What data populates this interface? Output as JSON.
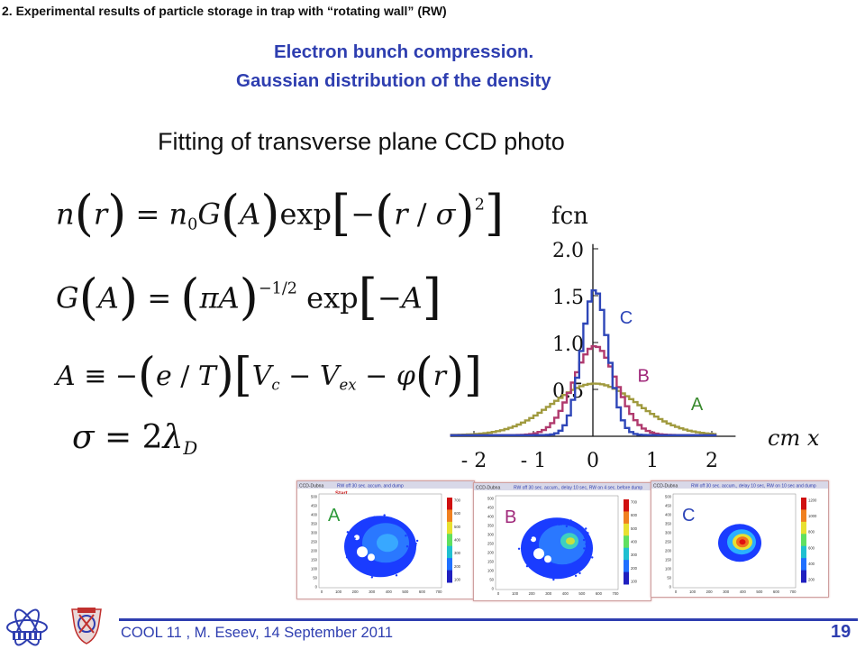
{
  "header": {
    "text": "2. Experimental results of particle storage in trap with “rotating wall” (RW)"
  },
  "title": {
    "line1": "Electron bunch compression.",
    "line2": "Gaussian distribution of the density"
  },
  "subtitle": "Fitting of transverse plane CCD photo",
  "equations": {
    "eq1": {
      "n": "n",
      "r1": "r",
      "eq": " = ",
      "n0": "n",
      "n0sub": "0",
      "G": "G",
      "A": "A",
      "exp": "exp",
      "minus": "−",
      "r2": "r",
      "slash": " / ",
      "sigma": "σ",
      "pow": "2"
    },
    "eq2": {
      "G": "G",
      "A": "A",
      "eq": " = ",
      "pi": "π",
      "A2": "A",
      "pow": "−1/2",
      "exp": " exp",
      "minus": "−",
      "A3": "A"
    },
    "eq3": {
      "A": "A",
      "eqv": " ≡ −",
      "e": "e",
      "slash": " / ",
      "T": "T",
      "V": "V",
      "csub": "c",
      "minus1": " − ",
      "V2": "V",
      "exsub": "ex",
      "minus2": " − ",
      "phi": "φ",
      "r": "r"
    },
    "eq4": {
      "sigma": "σ",
      "eq": " = 2",
      "lambda": "λ",
      "D": "D"
    }
  },
  "chart_data": {
    "type": "line",
    "title": "",
    "ylabel": "fcn",
    "xlabel": "cm x",
    "xlim": [
      -2.4,
      2.4
    ],
    "ylim": [
      0,
      2.05
    ],
    "x_ticks": [
      -2,
      -1,
      0,
      1,
      2
    ],
    "x_tick_labels": [
      "- 2",
      "- 1",
      "0",
      "1",
      "2"
    ],
    "y_ticks": [
      0.5,
      1.0,
      1.5,
      2.0
    ],
    "y_tick_labels": [
      "0.5",
      "1.0",
      "1.5",
      "2.0"
    ],
    "series": [
      {
        "name": "A",
        "color": "#a09a3e",
        "peak": 0.55,
        "sigma": 0.72
      },
      {
        "name": "B",
        "color": "#b03a6e",
        "peak": 0.95,
        "sigma": 0.36
      },
      {
        "name": "C",
        "color": "#2e46b8",
        "peak": 1.55,
        "sigma": 0.22
      }
    ],
    "series_labels": [
      {
        "name": "C",
        "x": 0.45,
        "y": 1.2,
        "color": "#2e46b8"
      },
      {
        "name": "B",
        "x": 0.75,
        "y": 0.58,
        "color": "#a0287a"
      },
      {
        "name": "A",
        "x": 1.65,
        "y": 0.28,
        "color": "#3a8a2e"
      }
    ]
  },
  "ccd_panels": [
    {
      "name": "A",
      "header": "CCD-Dubna",
      "title": "RW off 30 sec. accum. and dump",
      "start": "Start",
      "label": "A",
      "label_color": "#2e9a3a",
      "y_ticks": [
        "500",
        "450",
        "400",
        "350",
        "300",
        "250",
        "200",
        "150",
        "100",
        "50",
        "0"
      ],
      "x_ticks": [
        "0",
        "100",
        "200",
        "300",
        "400",
        "500",
        "600",
        "700"
      ],
      "scale_ticks": [
        "700",
        "600",
        "500",
        "400",
        "300",
        "200",
        "100"
      ]
    },
    {
      "name": "B",
      "header": "CCD-Dubna",
      "title": "RW off 30 sec. accum., delay 10 sec, RW on 4 sec. before dump",
      "start": "",
      "label": "B",
      "label_color": "#a0287a",
      "y_ticks": [
        "500",
        "450",
        "400",
        "350",
        "300",
        "250",
        "200",
        "150",
        "100",
        "50",
        "0"
      ],
      "x_ticks": [
        "0",
        "100",
        "200",
        "300",
        "400",
        "500",
        "600",
        "700"
      ],
      "scale_ticks": [
        "700",
        "600",
        "500",
        "400",
        "300",
        "200",
        "100"
      ]
    },
    {
      "name": "C",
      "header": "CCD-Dubna",
      "title": "RW off 30 sec. accum., delay 10 sec, RW on 10 sec and dump",
      "start": "",
      "label": "C",
      "label_color": "#2e46b8",
      "y_ticks": [
        "500",
        "450",
        "400",
        "350",
        "300",
        "250",
        "200",
        "150",
        "100",
        "50",
        "0"
      ],
      "x_ticks": [
        "0",
        "100",
        "200",
        "300",
        "400",
        "500",
        "600",
        "700"
      ],
      "scale_ticks": [
        "1200",
        "1000",
        "800",
        "600",
        "400",
        "200"
      ]
    }
  ],
  "footer": {
    "text": "COOL 11 , M. Eseev, 14 September 2011",
    "page": "19"
  },
  "colors": {
    "accent": "#2e3eb0"
  }
}
